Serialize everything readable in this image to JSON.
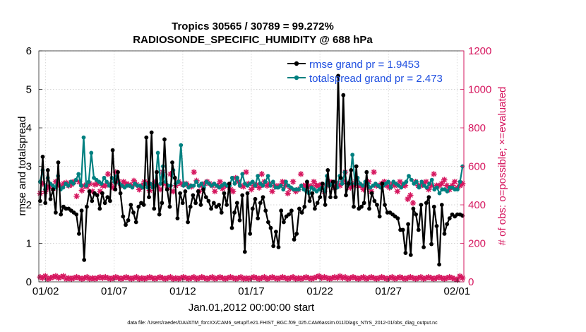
{
  "chart_data": {
    "type": "line",
    "title_line1": "Tropics 30565 / 30789 = 99.272%",
    "title_line2": "RADIOSONDE_SPECIFIC_HUMIDITY @ 688 hPa",
    "xlabel": "Jan.01,2012 00:00:00 start",
    "ylabel_left": "rmse and totalspread",
    "ylabel_right": "# of obs: o=possible; ×=evaluated",
    "footer": "data file: /Users/raeder/DAI/ATM_forcXX/CAM6_setup/f.e21.FHIST_BGC.f09_025.CAM6assim.011/Diags_NTrS_2012-01/obs_diag_output.nc",
    "xlim_days": [
      0.5,
      31.5
    ],
    "ylim_left": [
      0,
      6
    ],
    "ylim_right": [
      0,
      1200
    ],
    "x_ticks": [
      {
        "day": 1,
        "label": "01/02"
      },
      {
        "day": 6,
        "label": "01/07"
      },
      {
        "day": 11,
        "label": "01/12"
      },
      {
        "day": 16,
        "label": "01/17"
      },
      {
        "day": 21,
        "label": "01/22"
      },
      {
        "day": 26,
        "label": "01/27"
      },
      {
        "day": 31,
        "label": "02/01"
      }
    ],
    "y_left_ticks": [
      "0",
      "1",
      "2",
      "3",
      "4",
      "5",
      "6"
    ],
    "y_right_ticks": [
      "0",
      "200",
      "400",
      "600",
      "800",
      "1000",
      "1200"
    ],
    "colors": {
      "rmse": "#000000",
      "spread": "#008080",
      "obs": "#d6175f",
      "right_axis": "#d6175f",
      "legend_text": "#1f4fe0"
    },
    "series": [
      {
        "name": "rmse",
        "legend": "rmse grand pr = 1.9453",
        "values": [
          2.1,
          3.25,
          2.05,
          2.9,
          2.15,
          2.4,
          1.8,
          3.1,
          1.75,
          1.95,
          1.9,
          1.9,
          1.85,
          1.8,
          1.75,
          1.25,
          1.85,
          0.57,
          1.95,
          2.35,
          2.1,
          2.3,
          2.25,
          1.9,
          2.3,
          2.05,
          2.2,
          2.1,
          3.42,
          2.4,
          2.85,
          2.3,
          1.7,
          1.48,
          1.6,
          2.0,
          1.8,
          1.55,
          1.95,
          2.05,
          2.0,
          3.75,
          2.2,
          3.88,
          1.9,
          2.85,
          1.75,
          2.05,
          3.7,
          2.4,
          1.95,
          3.1,
          2.7,
          1.65,
          2.3,
          2.05,
          2.35,
          1.55,
          1.95,
          2.25,
          2.05,
          2.35,
          2.0,
          2.4,
          2.2,
          2.1,
          1.9,
          2.05,
          1.95,
          2.0,
          1.8,
          2.3,
          2.0,
          2.55,
          1.4,
          1.8,
          2.05,
          1.6,
          2.25,
          0.78,
          2.3,
          1.25,
          1.9,
          2.15,
          1.65,
          2.05,
          2.2,
          1.85,
          1.55,
          1.4,
          0.93,
          1.3,
          0.9,
          1.85,
          1.55,
          1.7,
          1.75,
          1.85,
          1.1,
          1.25,
          1.9,
          1.8,
          1.95,
          2.6,
          2.1,
          2.3,
          1.9,
          2.05,
          2.2,
          2.55,
          2.0,
          2.9,
          2.2,
          2.6,
          2.2,
          5.35,
          2.7,
          4.85,
          2.25,
          2.55,
          2.9,
          1.95,
          3.0,
          1.9,
          1.95,
          2.05,
          2.85,
          1.9,
          2.3,
          2.1,
          2.0,
          1.7,
          2.55,
          2.0,
          1.8,
          1.8,
          1.75,
          1.7,
          1.65,
          1.35,
          1.35,
          0.75,
          1.5,
          0.7,
          1.9,
          1.75,
          1.35,
          2.0,
          0.9,
          2.05,
          2.2,
          0.98,
          1.95,
          1.45,
          0.45,
          2.0,
          1.25,
          1.5,
          1.65,
          1.75,
          1.7,
          1.75,
          1.75,
          1.72
        ],
        "marker": "dot"
      },
      {
        "name": "totalspread",
        "legend": "totalspread grand pr = 2.473",
        "values": [
          2.6,
          2.9,
          2.4,
          2.7,
          2.55,
          2.5,
          2.45,
          2.75,
          2.4,
          2.45,
          2.55,
          2.5,
          2.6,
          2.55,
          2.65,
          2.8,
          2.5,
          3.75,
          2.5,
          2.6,
          3.35,
          2.7,
          2.65,
          2.6,
          2.55,
          2.7,
          2.6,
          2.5,
          2.7,
          2.6,
          2.75,
          2.55,
          2.5,
          2.45,
          2.5,
          2.5,
          2.45,
          2.55,
          2.5,
          2.5,
          2.45,
          2.55,
          2.45,
          2.55,
          2.45,
          2.5,
          3.35,
          2.55,
          3.0,
          2.6,
          2.5,
          2.5,
          2.9,
          2.55,
          2.6,
          3.55,
          2.5,
          2.55,
          2.45,
          2.5,
          2.5,
          2.6,
          2.5,
          2.55,
          2.45,
          2.6,
          2.55,
          2.5,
          2.55,
          2.5,
          2.45,
          2.5,
          2.55,
          2.5,
          2.5,
          2.7,
          2.55,
          2.7,
          2.5,
          2.8,
          2.55,
          2.5,
          2.55,
          2.6,
          2.5,
          2.75,
          2.55,
          2.5,
          2.6,
          2.75,
          2.5,
          2.6,
          2.45,
          2.45,
          2.5,
          2.4,
          2.6,
          2.5,
          2.45,
          2.4,
          2.4,
          2.4,
          2.5,
          2.4,
          2.35,
          2.3,
          2.45,
          2.4,
          2.35,
          2.4,
          2.45,
          2.35,
          2.75,
          2.5,
          2.55,
          2.6,
          2.45,
          2.75,
          2.55,
          2.85,
          2.5,
          2.55,
          3.3,
          2.55,
          2.7,
          2.55,
          2.5,
          2.6,
          2.55,
          2.45,
          2.5,
          2.55,
          2.5,
          2.45,
          2.5,
          2.55,
          2.6,
          2.45,
          2.6,
          2.55,
          2.5,
          2.45,
          2.55,
          2.6,
          2.75,
          2.65,
          2.55,
          2.6,
          2.45,
          2.6,
          2.5,
          2.45,
          2.55,
          2.65,
          2.4,
          2.45,
          2.3,
          2.4,
          2.4,
          2.35,
          2.45,
          2.45,
          2.4,
          2.4,
          2.6,
          3.0
        ],
        "marker": "dot"
      },
      {
        "name": "obs_possible",
        "legend": "o=possible",
        "values": [
          460,
          510,
          470,
          490,
          500,
          485,
          520,
          505,
          495,
          510,
          515,
          500,
          505,
          520,
          445,
          520,
          475,
          500,
          495,
          510,
          470,
          505,
          510,
          470,
          500,
          500,
          560,
          505,
          490,
          570,
          520,
          500,
          520,
          510,
          505,
          500,
          525,
          505,
          480,
          500,
          520,
          510,
          475,
          500,
          520,
          500,
          480,
          570,
          510,
          490,
          560,
          470,
          500,
          520,
          510,
          505,
          510,
          500,
          495,
          570,
          525,
          470,
          500,
          510,
          520,
          510,
          500,
          470,
          500,
          520,
          485,
          500,
          500,
          480,
          470,
          540,
          520,
          500,
          495,
          570,
          510,
          480,
          500,
          505,
          490,
          560,
          520,
          500,
          510,
          470,
          500,
          495,
          500,
          520,
          500,
          460,
          485,
          520,
          470,
          480,
          560,
          500,
          500,
          500,
          495,
          520,
          500,
          500,
          505,
          470,
          500,
          520,
          510,
          490,
          510,
          500,
          520,
          570,
          510,
          490,
          500,
          520,
          500,
          500,
          480,
          500,
          520,
          470,
          570,
          500,
          500,
          510,
          520,
          500,
          490,
          510,
          500,
          470,
          520,
          500,
          500,
          430,
          450,
          410,
          520,
          500,
          500,
          510,
          520,
          480,
          500,
          560,
          500,
          500,
          510,
          530,
          500,
          480,
          500,
          520,
          490,
          500,
          510
        ],
        "marker": "asterisk"
      },
      {
        "name": "obs_evaluated",
        "legend": "×=evaluated",
        "values": [
          25,
          20,
          30,
          15,
          20,
          25,
          30,
          20,
          25,
          30,
          15,
          20,
          15,
          20,
          25,
          20,
          15,
          20,
          25,
          15,
          20,
          15,
          20,
          25,
          20,
          25,
          20,
          15,
          20,
          25,
          20,
          15,
          20,
          25,
          20,
          15,
          20,
          25,
          15,
          20,
          15,
          20,
          25,
          20,
          15,
          20,
          25,
          20,
          15,
          20,
          25,
          15,
          20,
          15,
          20,
          25,
          20,
          15,
          20,
          25,
          15,
          20,
          25,
          20,
          15,
          20,
          25,
          15,
          20,
          25,
          20,
          15,
          20,
          25,
          20,
          15,
          20,
          25,
          15,
          20,
          15,
          20,
          25,
          20,
          15,
          20,
          25,
          15,
          20,
          25,
          20,
          15,
          20,
          25,
          20,
          15,
          20,
          25,
          15,
          20,
          15,
          20,
          25,
          20,
          15,
          20,
          25,
          30,
          20,
          25,
          20,
          15,
          20,
          25,
          20,
          30,
          20,
          25,
          15,
          20,
          25,
          20,
          15,
          20,
          25,
          15,
          20,
          25,
          20,
          15,
          20,
          25,
          20,
          15,
          20,
          25,
          15,
          20,
          25,
          20,
          15,
          20,
          25,
          20,
          15,
          20,
          25,
          15,
          20,
          25,
          20,
          15,
          20,
          25,
          20,
          15,
          20,
          25,
          20,
          15,
          10,
          30,
          20
        ],
        "marker": "asterisk"
      }
    ]
  }
}
